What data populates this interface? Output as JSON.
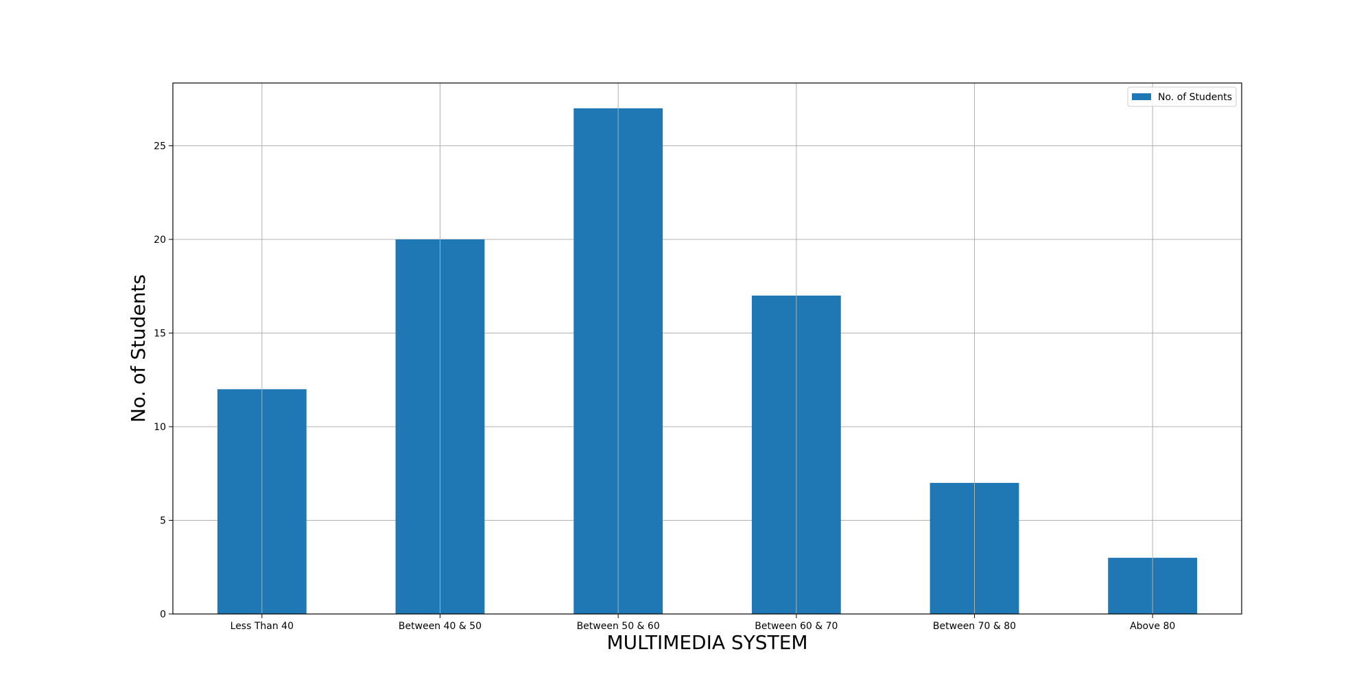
{
  "chart_data": {
    "type": "bar",
    "categories": [
      "Less Than 40",
      "Between 40 & 50",
      "Between 50 & 60",
      "Between 60 & 70",
      "Between 70 & 80",
      "Above 80"
    ],
    "series": [
      {
        "name": "No. of Students",
        "values": [
          12,
          20,
          27,
          17,
          7,
          3
        ],
        "color": "#1f77b4"
      }
    ],
    "xlabel": "MULTIMEDIA SYSTEM",
    "ylabel": "No. of Students",
    "ylim": [
      0,
      28.35
    ],
    "yticks": [
      0,
      5,
      10,
      15,
      20,
      25
    ],
    "grid": true,
    "legend_position": "top-right"
  }
}
